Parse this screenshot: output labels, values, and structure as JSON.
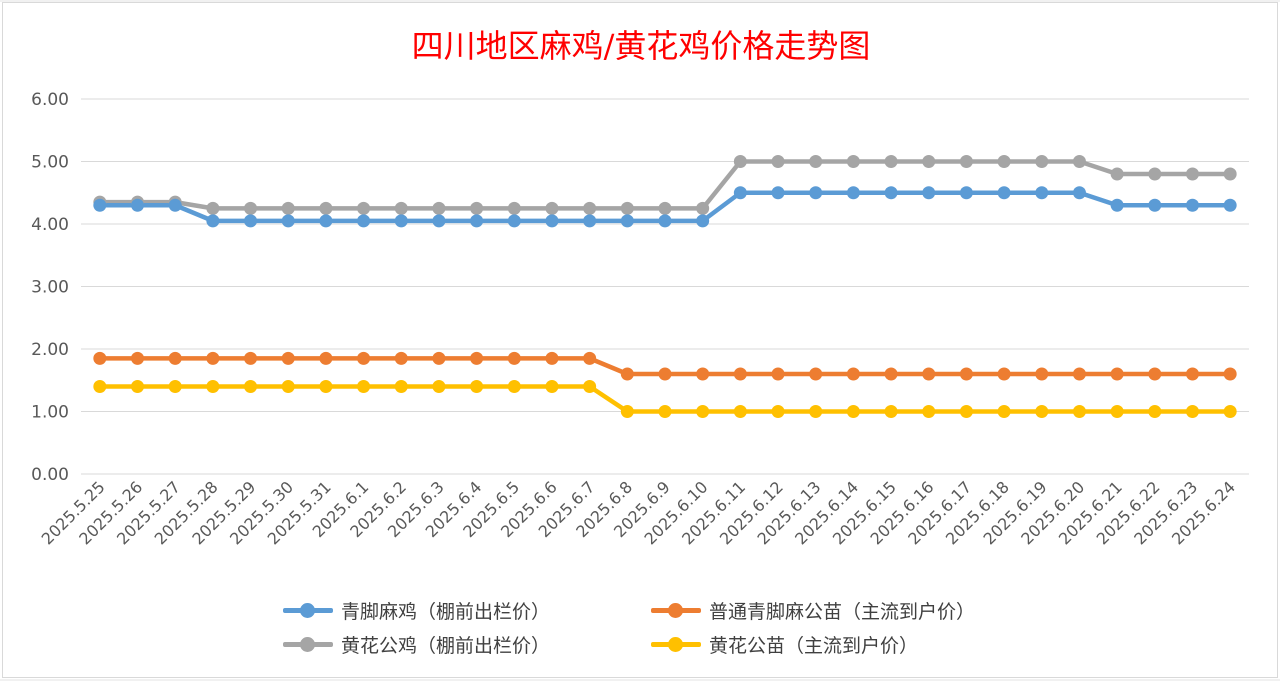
{
  "chart_data": {
    "type": "line",
    "title": "四川地区麻鸡/黄花鸡价格走势图",
    "xlabel": "",
    "ylabel": "",
    "ylim": [
      0,
      6
    ],
    "yticks": [
      "0.00",
      "1.00",
      "2.00",
      "3.00",
      "4.00",
      "5.00",
      "6.00"
    ],
    "grid": true,
    "legend_position": "bottom",
    "categories": [
      "2025.5.25",
      "2025.5.26",
      "2025.5.27",
      "2025.5.28",
      "2025.5.29",
      "2025.5.30",
      "2025.5.31",
      "2025.6.1",
      "2025.6.2",
      "2025.6.3",
      "2025.6.4",
      "2025.6.5",
      "2025.6.6",
      "2025.6.7",
      "2025.6.8",
      "2025.6.9",
      "2025.6.10",
      "2025.6.11",
      "2025.6.12",
      "2025.6.13",
      "2025.6.14",
      "2025.6.15",
      "2025.6.16",
      "2025.6.17",
      "2025.6.18",
      "2025.6.19",
      "2025.6.20",
      "2025.6.21",
      "2025.6.22",
      "2025.6.23",
      "2025.6.24"
    ],
    "series": [
      {
        "name": "青脚麻鸡（棚前出栏价）",
        "color": "#5b9bd5",
        "values": [
          4.3,
          4.3,
          4.3,
          4.05,
          4.05,
          4.05,
          4.05,
          4.05,
          4.05,
          4.05,
          4.05,
          4.05,
          4.05,
          4.05,
          4.05,
          4.05,
          4.05,
          4.5,
          4.5,
          4.5,
          4.5,
          4.5,
          4.5,
          4.5,
          4.5,
          4.5,
          4.5,
          4.3,
          4.3,
          4.3,
          4.3
        ]
      },
      {
        "name": "普通青脚麻公苗（主流到户价）",
        "color": "#ed7d31",
        "values": [
          1.85,
          1.85,
          1.85,
          1.85,
          1.85,
          1.85,
          1.85,
          1.85,
          1.85,
          1.85,
          1.85,
          1.85,
          1.85,
          1.85,
          1.6,
          1.6,
          1.6,
          1.6,
          1.6,
          1.6,
          1.6,
          1.6,
          1.6,
          1.6,
          1.6,
          1.6,
          1.6,
          1.6,
          1.6,
          1.6,
          1.6
        ]
      },
      {
        "name": "黄花公鸡（棚前出栏价）",
        "color": "#a5a5a5",
        "values": [
          4.35,
          4.35,
          4.35,
          4.25,
          4.25,
          4.25,
          4.25,
          4.25,
          4.25,
          4.25,
          4.25,
          4.25,
          4.25,
          4.25,
          4.25,
          4.25,
          4.25,
          5.0,
          5.0,
          5.0,
          5.0,
          5.0,
          5.0,
          5.0,
          5.0,
          5.0,
          5.0,
          4.8,
          4.8,
          4.8,
          4.8
        ]
      },
      {
        "name": "黄花公苗（主流到户价）",
        "color": "#ffc000",
        "values": [
          1.4,
          1.4,
          1.4,
          1.4,
          1.4,
          1.4,
          1.4,
          1.4,
          1.4,
          1.4,
          1.4,
          1.4,
          1.4,
          1.4,
          1.0,
          1.0,
          1.0,
          1.0,
          1.0,
          1.0,
          1.0,
          1.0,
          1.0,
          1.0,
          1.0,
          1.0,
          1.0,
          1.0,
          1.0,
          1.0,
          1.0
        ]
      }
    ]
  }
}
